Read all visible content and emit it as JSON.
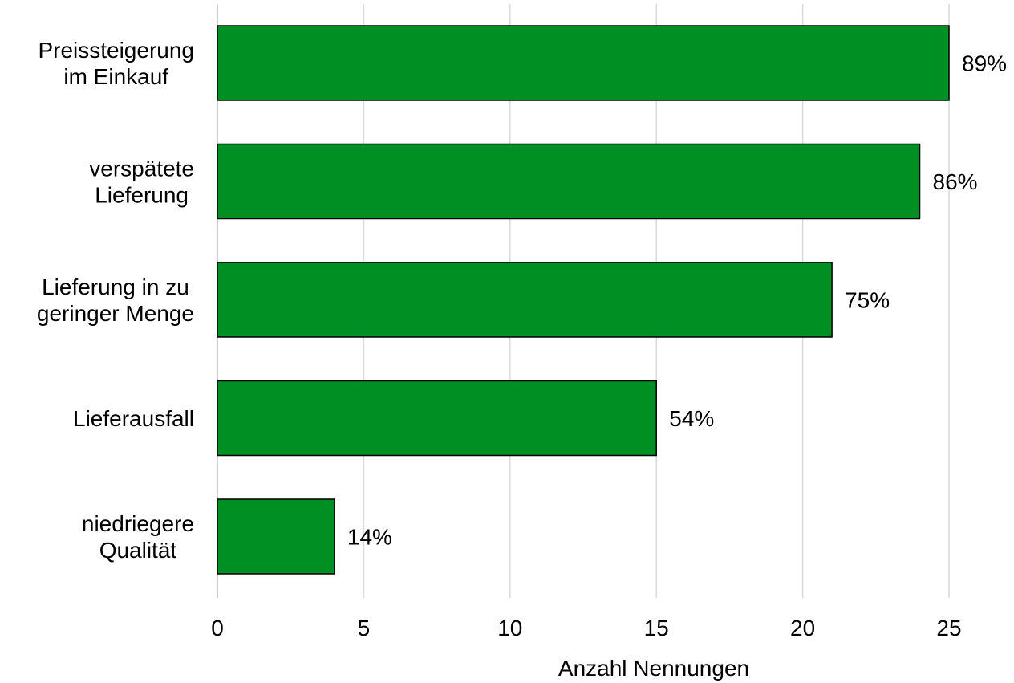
{
  "chart_data": {
    "type": "bar",
    "orientation": "horizontal",
    "categories": [
      [
        "Preissteigerung",
        "im Einkauf"
      ],
      [
        "verspätete",
        "Lieferung"
      ],
      [
        "Lieferung in zu",
        "geringer Menge"
      ],
      [
        "Lieferausfall"
      ],
      [
        "niedriegere",
        "Qualität"
      ]
    ],
    "values": [
      25,
      24,
      21,
      15,
      4
    ],
    "data_labels": [
      "89%",
      "86%",
      "75%",
      "54%",
      "14%"
    ],
    "xlabel": "Anzahl Nennungen",
    "xlim": [
      0,
      25
    ],
    "xticks": [
      0,
      5,
      10,
      15,
      20,
      25
    ],
    "grid": true,
    "legend": "none",
    "colors": {
      "bar_fill": "#008f22",
      "bar_stroke": "#000000",
      "grid": "#d9d9d9"
    }
  }
}
